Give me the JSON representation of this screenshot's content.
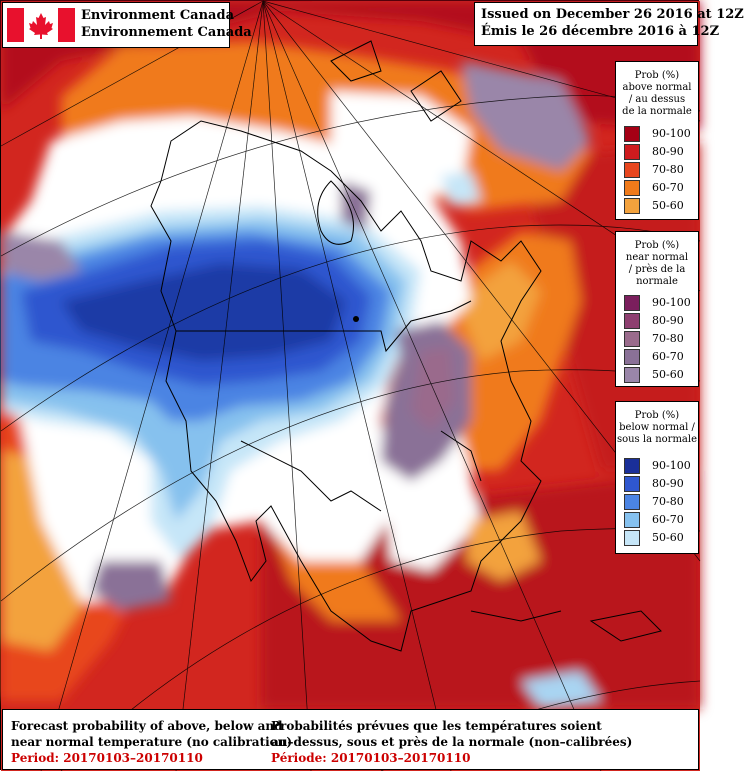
{
  "header": {
    "agency_en": "Environment Canada",
    "agency_fr": "Environnement Canada",
    "issued_en": "Issued on December 26 2016 at 12Z",
    "issued_fr": "Émis le 26 décembre 2016 à 12Z"
  },
  "legends": [
    {
      "id": "above",
      "title": [
        "Prob (%)",
        "above normal",
        "/ au dessus",
        "de la normale"
      ],
      "entries": [
        {
          "range": "90-100",
          "color": "#a50015"
        },
        {
          "range": "80-90",
          "color": "#cf1b1e"
        },
        {
          "range": "70-80",
          "color": "#e8461e"
        },
        {
          "range": "60-70",
          "color": "#f07a1a"
        },
        {
          "range": "50-60",
          "color": "#f3a23d"
        }
      ]
    },
    {
      "id": "near",
      "title": [
        "Prob (%)",
        "near normal",
        "/ près de la",
        "normale"
      ],
      "entries": [
        {
          "range": "90-100",
          "color": "#7b1f5d"
        },
        {
          "range": "80-90",
          "color": "#8e3f70"
        },
        {
          "range": "70-80",
          "color": "#9a6b8c"
        },
        {
          "range": "60-70",
          "color": "#8a7197"
        },
        {
          "range": "50-60",
          "color": "#9a86a9"
        }
      ]
    },
    {
      "id": "below",
      "title": [
        "Prob (%)",
        "below normal /",
        "sous la normale"
      ],
      "entries": [
        {
          "range": "90-100",
          "color": "#1a2f99"
        },
        {
          "range": "80-90",
          "color": "#2f57cf"
        },
        {
          "range": "70-80",
          "color": "#4b84e3"
        },
        {
          "range": "60-70",
          "color": "#86c1ee"
        },
        {
          "range": "50-60",
          "color": "#c6e6f8"
        }
      ]
    }
  ],
  "caption": {
    "en_line1": "Forecast probability of above, below and",
    "en_line2": "near normal temperature (no calibration)",
    "en_period": "Period: 20170103–20170110",
    "fr_line1": "Probabilités prévues que les températures soient",
    "fr_line2": "au–dessus, sous et près de la normale (non–calibrées)",
    "fr_period": "Période: 20170103–20170110"
  }
}
